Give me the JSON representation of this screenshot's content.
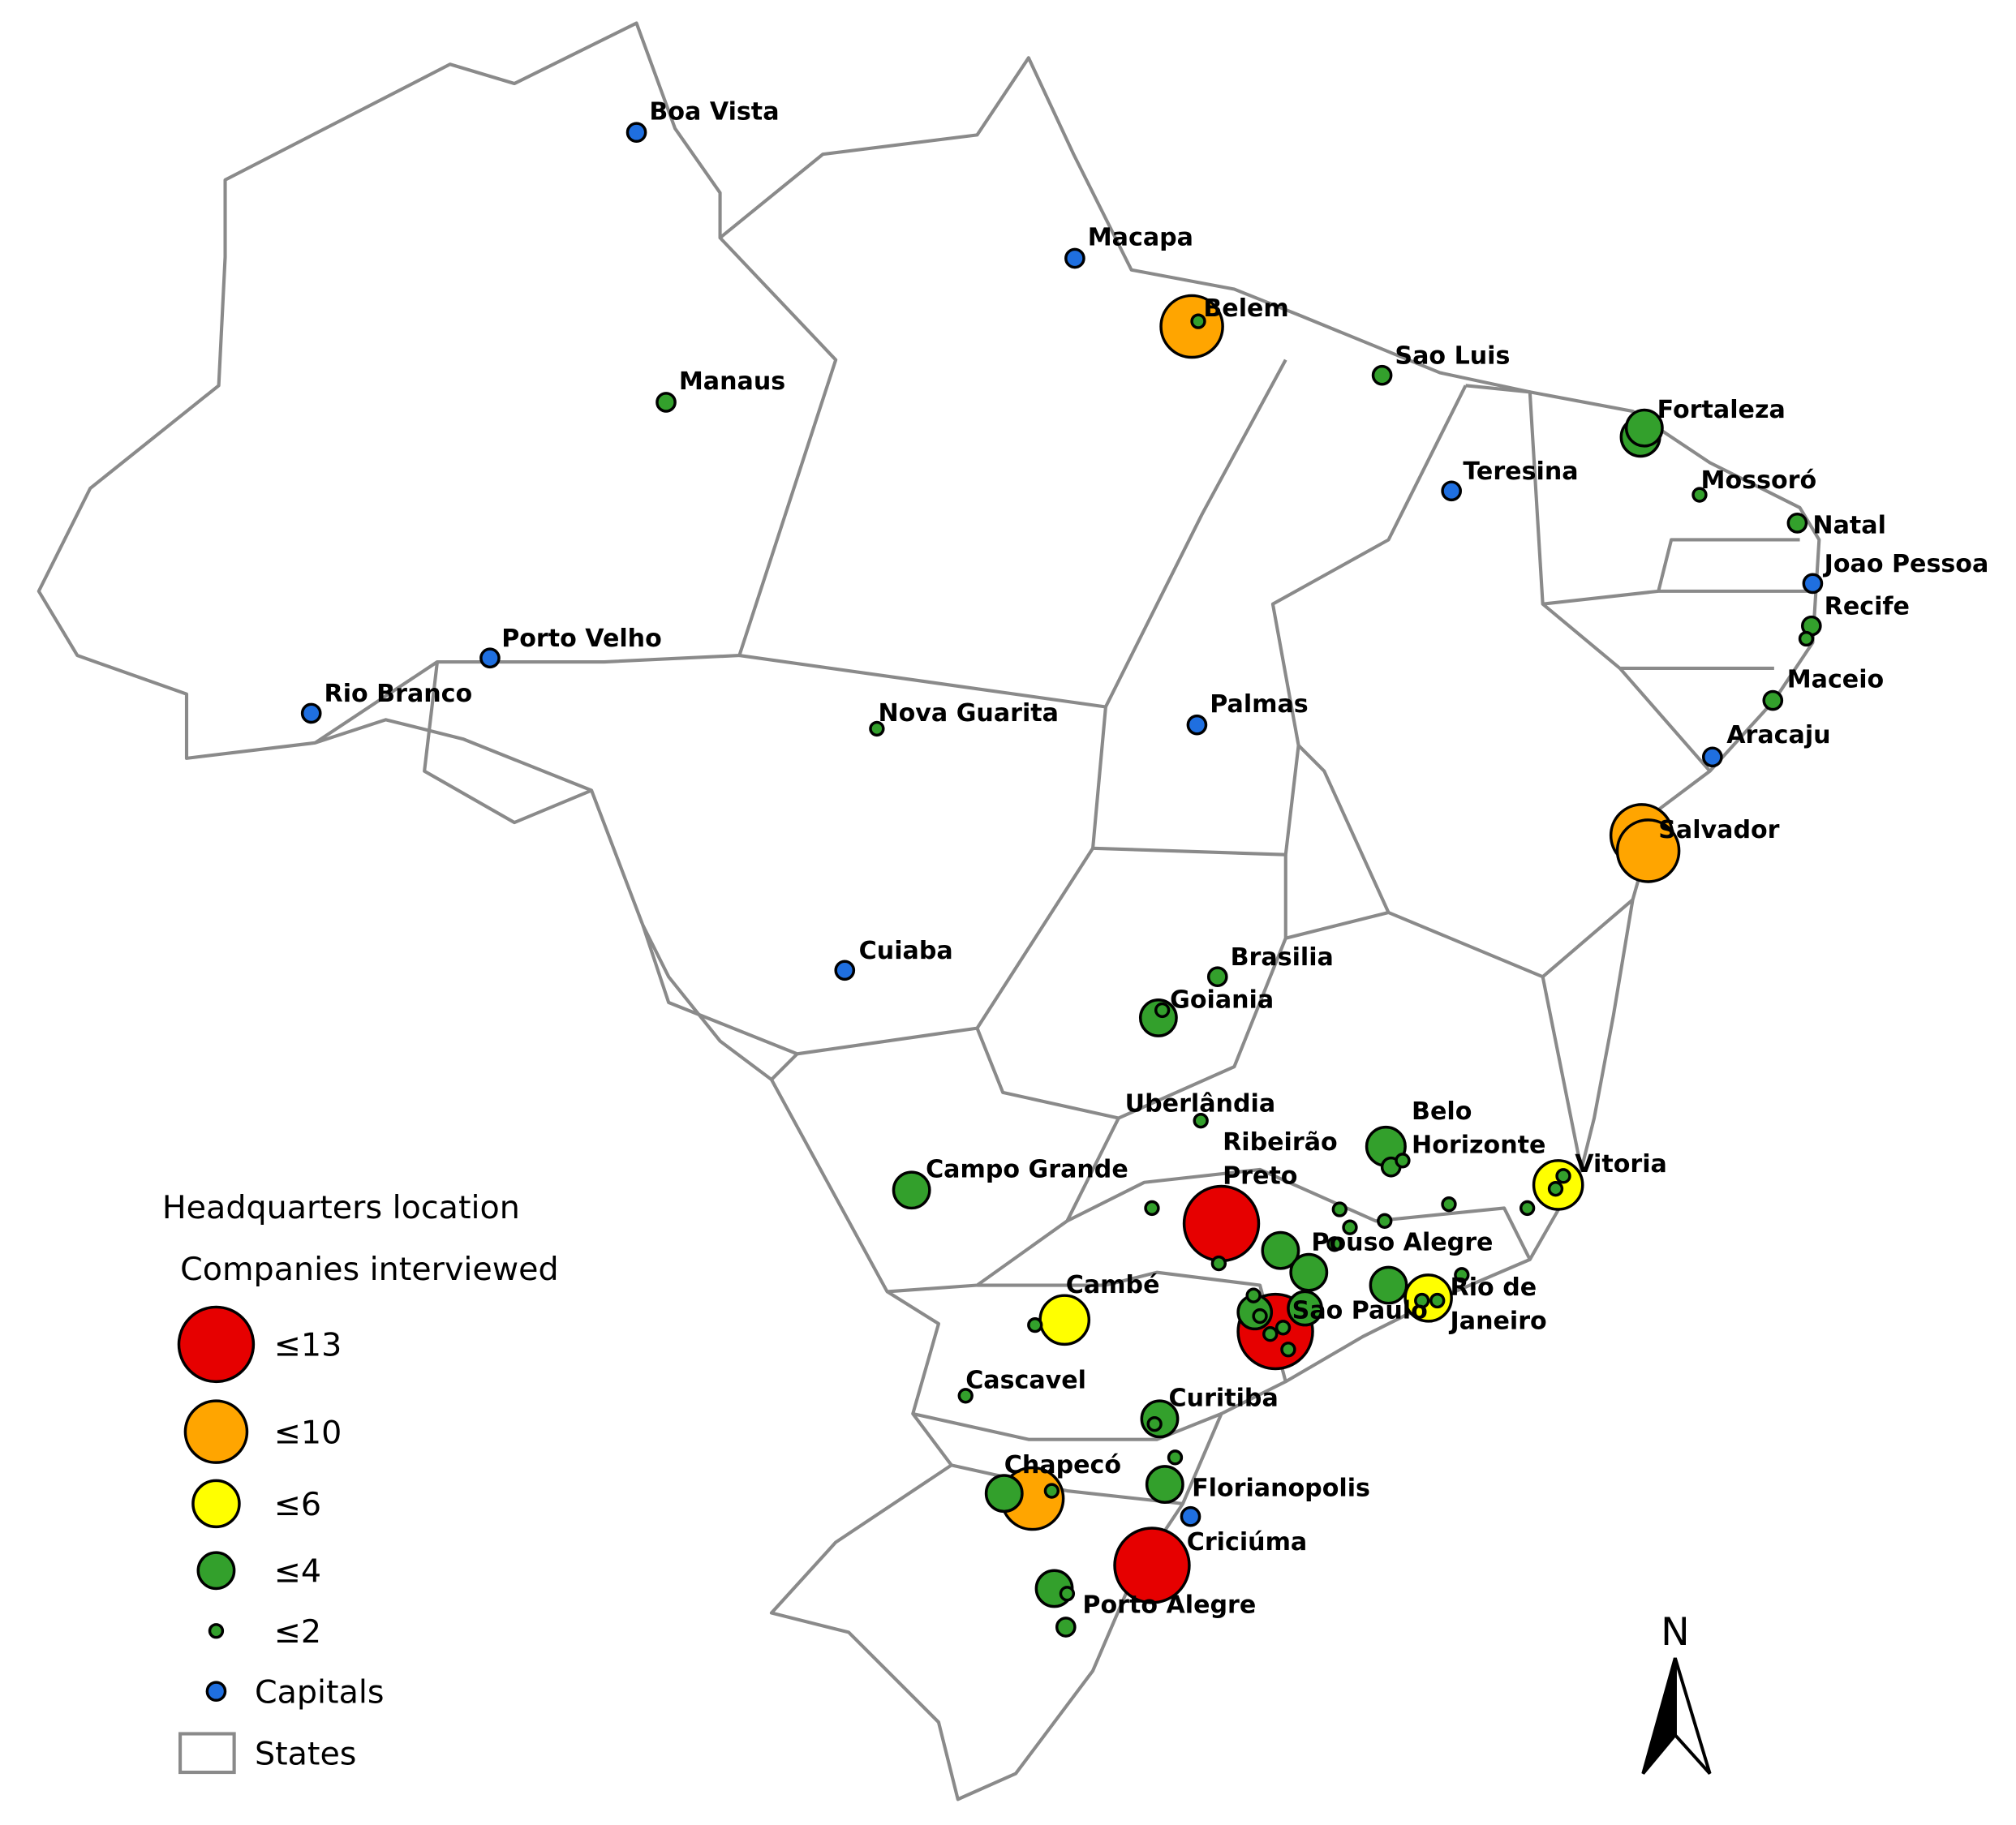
{
  "legend": {
    "title": "Headquarters location",
    "subtitle": "Companies interviewed",
    "classes": [
      {
        "label": "≤13",
        "color": "#e60000"
      },
      {
        "label": "≤10",
        "color": "#ffa500"
      },
      {
        "label": "≤6",
        "color": "#ffff00"
      },
      {
        "label": "≤4",
        "color": "#33a02c"
      },
      {
        "label": "≤2",
        "color": "#33a02c"
      },
      {
        "label": "Capitals",
        "color": "#1f6fe0"
      }
    ],
    "states": "States"
  },
  "north": "N",
  "cities": [
    [
      "Boa Vista"
    ],
    [
      "Macapa"
    ],
    [
      "Belem"
    ],
    [
      "Manaus"
    ],
    [
      "Sao Luis"
    ],
    [
      "Fortaleza"
    ],
    [
      "Teresina"
    ],
    [
      "Mossoró"
    ],
    [
      "Natal"
    ],
    [
      "Joao Pessoa"
    ],
    [
      "Recife"
    ],
    [
      "Porto Velho"
    ],
    [
      "Rio Branco"
    ],
    [
      "Nova Guarita"
    ],
    [
      "Palmas"
    ],
    [
      "Maceio"
    ],
    [
      "Aracaju"
    ],
    [
      "Salvador"
    ],
    [
      "Cuiaba"
    ],
    [
      "Brasilia"
    ],
    [
      "Goiania"
    ],
    [
      "Uberlândia"
    ],
    [
      "Belo",
      "Horizonte"
    ],
    [
      "Ribeirão",
      "Preto"
    ],
    [
      "Campo Grande"
    ],
    [
      "Vitoria"
    ],
    [
      "Pouso Alegre"
    ],
    [
      "Cambé"
    ],
    [
      "Rio de",
      "Janeiro"
    ],
    [
      "Sao Paulo"
    ],
    [
      "Cascavel"
    ],
    [
      "Curitiba"
    ],
    [
      "Chapecó"
    ],
    [
      "Florianopolis"
    ],
    [
      "Criciúma"
    ],
    [
      "Porto Alegre"
    ]
  ]
}
